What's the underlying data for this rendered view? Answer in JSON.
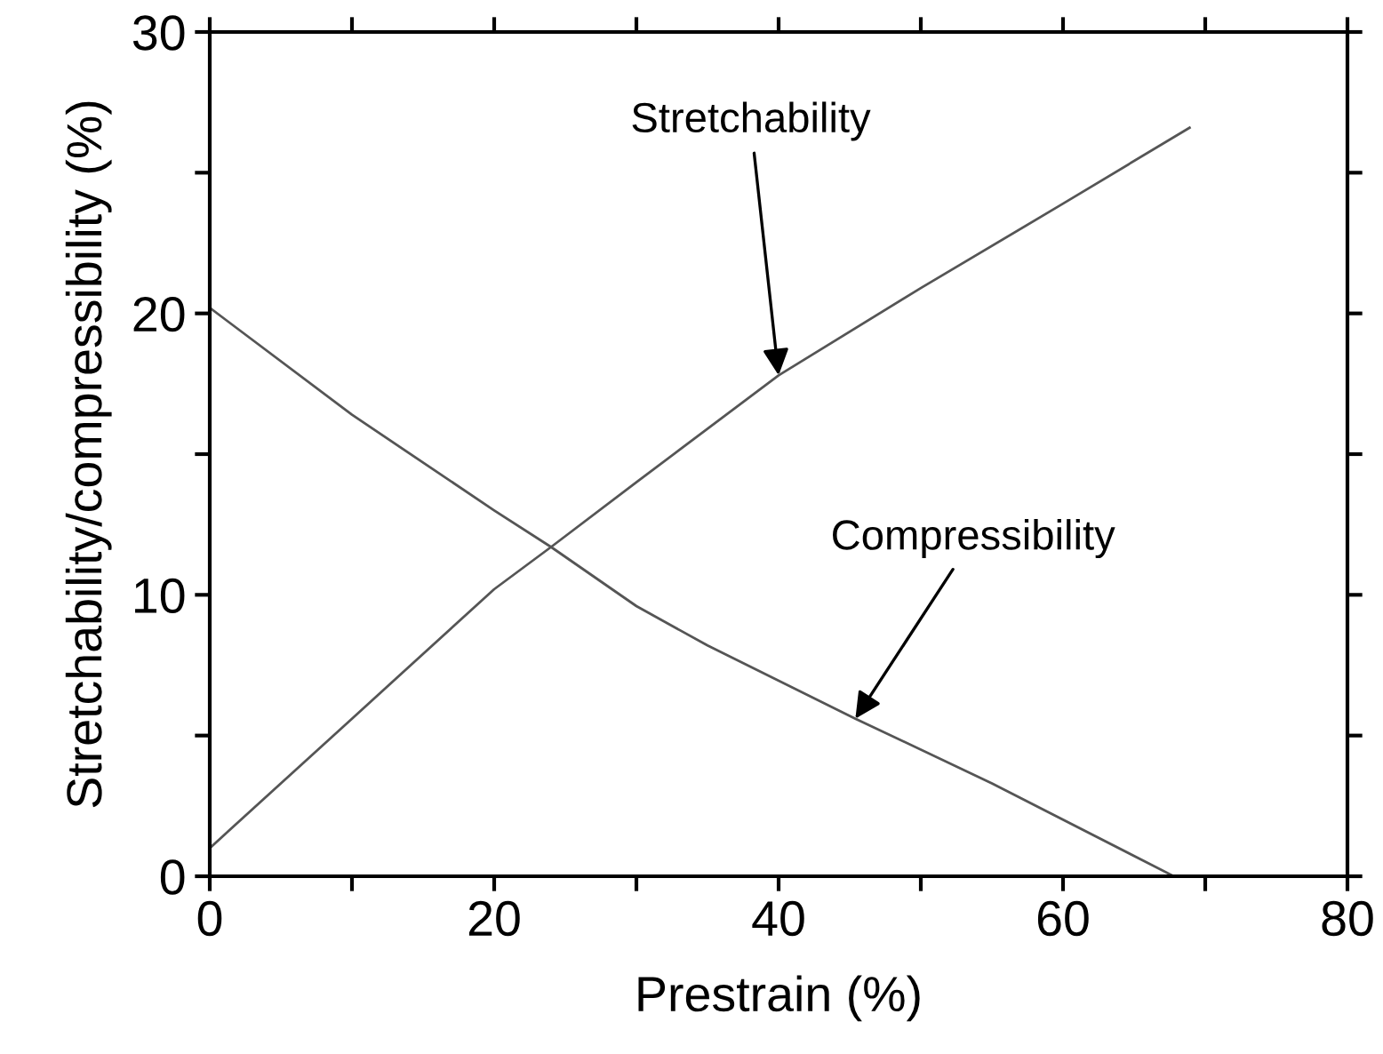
{
  "chart_data": {
    "type": "line",
    "xlabel": "Prestrain (%)",
    "ylabel": "Stretchability/compressibility (%)",
    "xlim": [
      0,
      80
    ],
    "ylim": [
      0,
      30
    ],
    "xticks": [
      0,
      {
        "value": 10,
        "label": null
      },
      20,
      {
        "value": 30,
        "label": null
      },
      40,
      {
        "value": 50,
        "label": null
      },
      60,
      {
        "value": 70,
        "label": null
      },
      80
    ],
    "yticks": [
      0,
      {
        "value": 5,
        "label": null
      },
      10,
      {
        "value": 15,
        "label": null
      },
      20,
      {
        "value": 25,
        "label": null
      },
      30
    ],
    "grid": false,
    "legend": false,
    "marker": "none",
    "line_style": "solid",
    "series": [
      {
        "color": "#555555",
        "x": [
          0,
          10,
          20,
          24,
          30,
          40,
          50,
          60,
          68.9
        ],
        "values": [
          1.0,
          5.6,
          10.2,
          11.7,
          14.0,
          17.8,
          20.9,
          23.9,
          26.6
        ]
      },
      {
        "color": "#555555",
        "x": [
          0,
          10,
          20,
          24,
          30,
          35,
          45.4,
          55,
          67.8
        ],
        "values": [
          20.2,
          16.4,
          13.0,
          11.7,
          9.6,
          8.2,
          5.6,
          3.3,
          0
        ]
      }
    ],
    "annotations": [
      {
        "text": "Stretchability",
        "x": 40,
        "y": 17.8
      },
      {
        "text": "Compressibility",
        "x": 45.4,
        "y": 5.6
      }
    ]
  }
}
